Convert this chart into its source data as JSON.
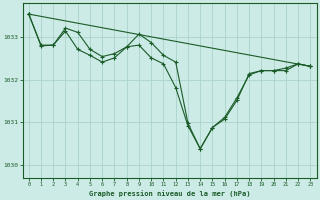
{
  "bg_color": "#cceae6",
  "grid_color": "#aad4cc",
  "line_color": "#1a5c28",
  "title": "Graphe pression niveau de la mer (hPa)",
  "xlim": [
    -0.5,
    23.5
  ],
  "ylim": [
    1029.7,
    1033.8
  ],
  "yticks": [
    1030,
    1031,
    1032,
    1033
  ],
  "xticks": [
    0,
    1,
    2,
    3,
    4,
    5,
    6,
    7,
    8,
    9,
    10,
    11,
    12,
    13,
    14,
    15,
    16,
    17,
    18,
    19,
    20,
    21,
    22,
    23
  ],
  "series_main": {
    "x": [
      0,
      1,
      2,
      3,
      4,
      5,
      6,
      7,
      8,
      9,
      10,
      11,
      12,
      13,
      14,
      15,
      16,
      17,
      18,
      19,
      20,
      21,
      22,
      23
    ],
    "y": [
      1033.55,
      1032.8,
      1032.82,
      1033.15,
      1032.72,
      1032.58,
      1032.42,
      1032.52,
      1032.78,
      1032.82,
      1032.52,
      1032.38,
      1031.82,
      1030.92,
      1030.38,
      1030.88,
      1031.12,
      1031.58,
      1032.12,
      1032.22,
      1032.22,
      1032.22,
      1032.38,
      1032.32
    ]
  },
  "series_upper": {
    "x": [
      0,
      1,
      2,
      3,
      4,
      5,
      6,
      7,
      8,
      9,
      10,
      11,
      12,
      13,
      14,
      15,
      16,
      17,
      18,
      19,
      20,
      21,
      22,
      23
    ],
    "y": [
      1033.55,
      1032.82,
      1032.82,
      1033.22,
      1033.12,
      1032.72,
      1032.55,
      1032.62,
      1032.78,
      1033.08,
      1032.88,
      1032.58,
      1032.42,
      1030.98,
      1030.38,
      1030.88,
      1031.08,
      1031.52,
      1032.15,
      1032.22,
      1032.22,
      1032.28,
      1032.38,
      1032.32
    ]
  },
  "series_linear": {
    "x": [
      0,
      23
    ],
    "y": [
      1033.55,
      1032.32
    ]
  }
}
